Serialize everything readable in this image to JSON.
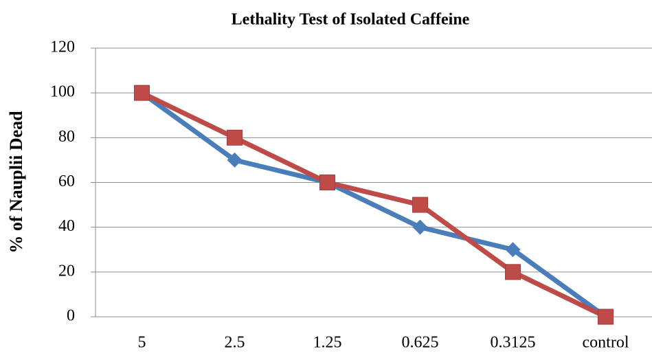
{
  "chart_data": {
    "type": "line",
    "title": "Lethality Test of Isolated Caffeine",
    "y_label": "% of Nauplii Dead",
    "categories": [
      "5",
      "2.5",
      "1.25",
      "0.625",
      "0.3125",
      "control"
    ],
    "series": [
      {
        "color": "#4a7ebb",
        "marker": "diamond",
        "values": [
          100,
          70,
          60,
          40,
          30,
          0
        ]
      },
      {
        "color": "#be4b48",
        "marker": "square",
        "values": [
          100,
          80,
          60,
          50,
          20,
          0
        ]
      }
    ],
    "ylim": [
      0,
      120
    ],
    "yticks": [
      0,
      20,
      40,
      60,
      80,
      100,
      120
    ],
    "grid": true
  }
}
